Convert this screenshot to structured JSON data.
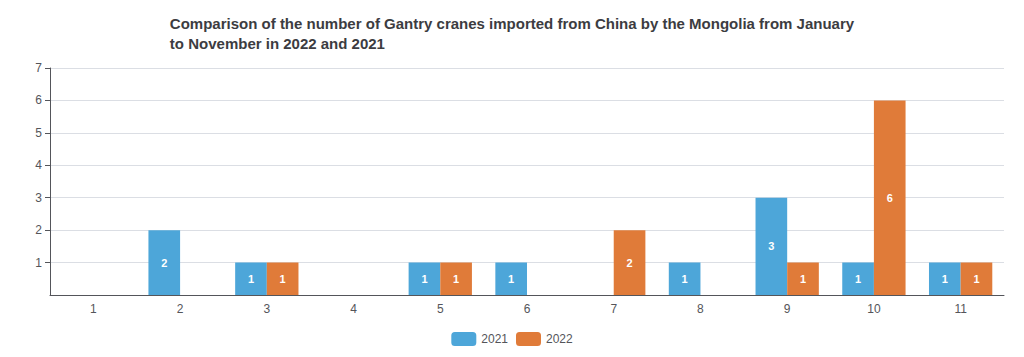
{
  "chart_data": {
    "type": "bar",
    "title": "Comparison of the number of Gantry cranes imported from China by the Mongolia from January\nto November in 2022 and 2021",
    "categories": [
      1,
      2,
      3,
      4,
      5,
      6,
      7,
      8,
      9,
      10,
      11
    ],
    "series": [
      {
        "name": "2021",
        "color": "#4da6d9",
        "values": [
          0,
          2,
          1,
          0,
          1,
          1,
          0,
          1,
          3,
          1,
          1
        ],
        "value_labels": [
          null,
          "2",
          "1",
          null,
          "1",
          "1",
          null,
          "1",
          "3",
          "1",
          "1"
        ]
      },
      {
        "name": "2022",
        "color": "#e07b39",
        "values": [
          0,
          0,
          1,
          0,
          1,
          0,
          2,
          0,
          1,
          6,
          1
        ],
        "value_labels": [
          null,
          null,
          "1",
          null,
          "1",
          null,
          "2",
          null,
          "1",
          "6",
          "1"
        ]
      }
    ],
    "ylim": [
      0,
      7
    ],
    "yticks": [
      1,
      2,
      3,
      4,
      5,
      6,
      7
    ],
    "grid": true,
    "legend": "bottom",
    "data_labels": true
  }
}
